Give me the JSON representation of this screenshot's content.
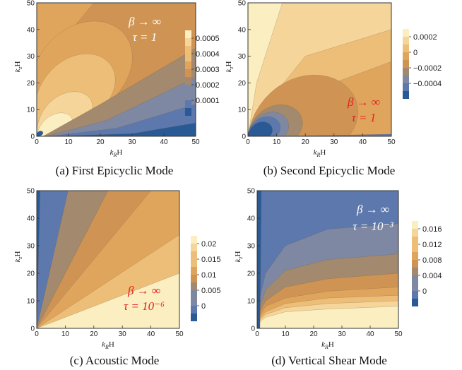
{
  "colors": {
    "scale": [
      "#2a5a96",
      "#5c78ad",
      "#7e88a2",
      "#a3896d",
      "#cf9454",
      "#e0a55d",
      "#edbe77",
      "#f5d59a",
      "#fbeec0"
    ],
    "ink": "#222222",
    "red": "#e02020",
    "white": "#ffffff"
  },
  "chart_data": [
    {
      "type": "contour",
      "caption": "(a)  First Epicyclic Mode",
      "xlabel": "k_R H",
      "ylabel": "k_z H",
      "xlim": [
        0,
        50
      ],
      "ylim": [
        0,
        50
      ],
      "xticks": [
        "0",
        "10",
        "20",
        "30",
        "40",
        "50"
      ],
      "yticks": [
        "0",
        "10",
        "20",
        "30",
        "40",
        "50"
      ],
      "legend_labels": [
        "0.0005",
        "0.0004",
        "0.0003",
        "0.0002",
        "0.0001"
      ],
      "annotation": [
        "β → ∞",
        "τ = 1"
      ],
      "annotation_color": "white"
    },
    {
      "type": "contour",
      "caption": "(b)  Second Epicyclic Mode",
      "xlabel": "k_R H",
      "ylabel": "k_z H",
      "xlim": [
        0,
        50
      ],
      "ylim": [
        0,
        50
      ],
      "xticks": [
        "0",
        "10",
        "20",
        "30",
        "40",
        "50"
      ],
      "yticks": [
        "0",
        "10",
        "20",
        "30",
        "40",
        "50"
      ],
      "legend_labels": [
        "0.0002",
        "0",
        "−0.0002",
        "−0.0004"
      ],
      "annotation": [
        "β → ∞",
        "τ = 1"
      ],
      "annotation_color": "red"
    },
    {
      "type": "contour",
      "caption": "(c)  Acoustic Mode",
      "xlabel": "k_R H",
      "ylabel": "k_z H",
      "xlim": [
        0,
        50
      ],
      "ylim": [
        0,
        50
      ],
      "xticks": [
        "0",
        "10",
        "20",
        "30",
        "40",
        "50"
      ],
      "yticks": [
        "0",
        "10",
        "20",
        "30",
        "40",
        "50"
      ],
      "legend_labels": [
        "0.02",
        "0.015",
        "0.01",
        "0.005",
        "0"
      ],
      "annotation": [
        "β → ∞",
        "τ = 10⁻⁶"
      ],
      "annotation_color": "red"
    },
    {
      "type": "contour",
      "caption": "(d)  Vertical Shear Mode",
      "xlabel": "k_R H",
      "ylabel": "k_z H",
      "xlim": [
        0,
        50
      ],
      "ylim": [
        0,
        50
      ],
      "xticks": [
        "0",
        "10",
        "20",
        "30",
        "40",
        "50"
      ],
      "yticks": [
        "0",
        "10",
        "20",
        "30",
        "40",
        "50"
      ],
      "legend_labels": [
        "0.016",
        "0.012",
        "0.008",
        "0.004",
        "0"
      ],
      "annotation": [
        "β → ∞",
        "τ = 10⁻³"
      ],
      "annotation_color": "white"
    }
  ]
}
